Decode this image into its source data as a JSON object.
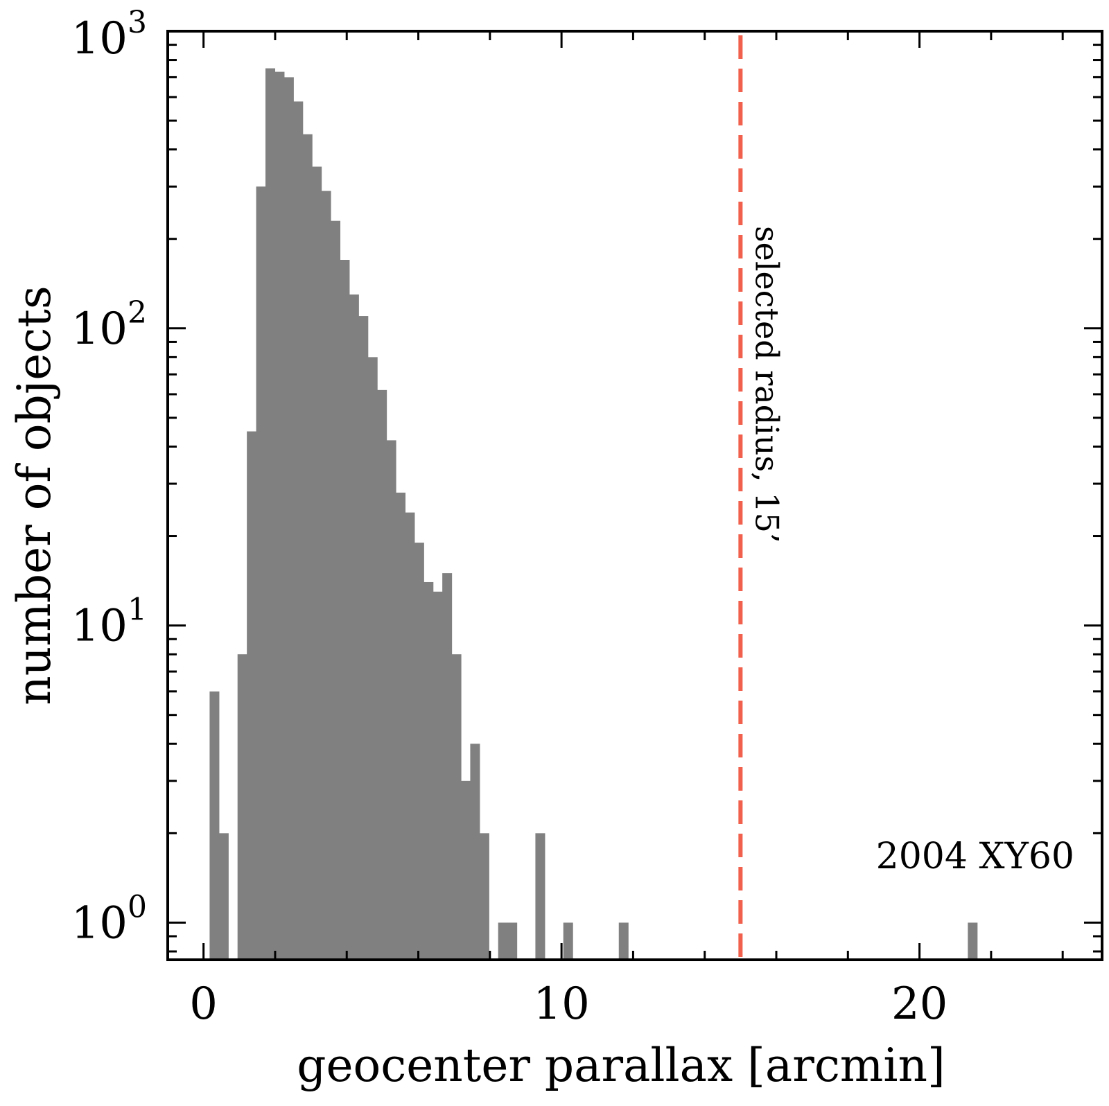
{
  "chart_data": {
    "type": "bar",
    "subtype": "histogram",
    "title": "",
    "xlabel": "geocenter parallax [arcmin]",
    "ylabel": "number of objects",
    "xlim": [
      -1,
      25.1
    ],
    "ylim": [
      0.75,
      1000
    ],
    "yscale": "log",
    "xticks": [
      0,
      10,
      20
    ],
    "xtick_labels": [
      "0",
      "10",
      "20"
    ],
    "yticks": [
      1,
      10,
      100,
      1000
    ],
    "ytick_labels": [
      {
        "base": "10",
        "exp": "0"
      },
      {
        "base": "10",
        "exp": "1"
      },
      {
        "base": "10",
        "exp": "2"
      },
      {
        "base": "10",
        "exp": "3"
      }
    ],
    "bin_width": 0.26,
    "bins": [
      {
        "x0": 0.17,
        "count": 6
      },
      {
        "x0": 0.43,
        "count": 2
      },
      {
        "x0": 0.95,
        "count": 8
      },
      {
        "x0": 1.21,
        "count": 45
      },
      {
        "x0": 1.47,
        "count": 300
      },
      {
        "x0": 1.73,
        "count": 750
      },
      {
        "x0": 1.99,
        "count": 730
      },
      {
        "x0": 2.25,
        "count": 700
      },
      {
        "x0": 2.51,
        "count": 580
      },
      {
        "x0": 2.77,
        "count": 450
      },
      {
        "x0": 3.03,
        "count": 350
      },
      {
        "x0": 3.29,
        "count": 290
      },
      {
        "x0": 3.55,
        "count": 230
      },
      {
        "x0": 3.81,
        "count": 170
      },
      {
        "x0": 4.07,
        "count": 130
      },
      {
        "x0": 4.33,
        "count": 110
      },
      {
        "x0": 4.59,
        "count": 80
      },
      {
        "x0": 4.85,
        "count": 62
      },
      {
        "x0": 5.11,
        "count": 42
      },
      {
        "x0": 5.37,
        "count": 28
      },
      {
        "x0": 5.63,
        "count": 24
      },
      {
        "x0": 5.89,
        "count": 19
      },
      {
        "x0": 6.15,
        "count": 14
      },
      {
        "x0": 6.41,
        "count": 13
      },
      {
        "x0": 6.67,
        "count": 15
      },
      {
        "x0": 6.93,
        "count": 8
      },
      {
        "x0": 7.19,
        "count": 3
      },
      {
        "x0": 7.45,
        "count": 4
      },
      {
        "x0": 7.71,
        "count": 2
      },
      {
        "x0": 8.23,
        "count": 1
      },
      {
        "x0": 8.49,
        "count": 1
      },
      {
        "x0": 9.27,
        "count": 2
      },
      {
        "x0": 10.05,
        "count": 1
      },
      {
        "x0": 11.6,
        "count": 1
      },
      {
        "x0": 21.35,
        "count": 1
      }
    ],
    "bar_color": "#808080",
    "vline": {
      "x": 15,
      "label": "selected radius, 15’",
      "color": "#f0604d",
      "style": "dashed"
    },
    "annotation": "2004 XY60"
  }
}
